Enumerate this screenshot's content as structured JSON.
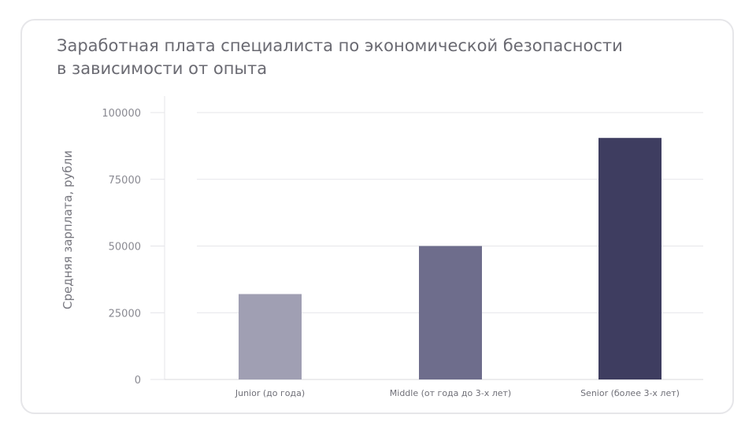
{
  "chart_data": {
    "type": "bar",
    "title_lines": [
      "Заработная плата специалиста по экономической безопасности",
      "в зависимости от опыта"
    ],
    "xlabel": "",
    "ylabel": "Средняя зарплата, рубли",
    "categories": [
      "Junior (до года)",
      "Middle (от года до 3-х лет)",
      "Senior (более 3-х лет)"
    ],
    "values": [
      32000,
      50000,
      90500
    ],
    "bar_colors": [
      "#a09fb3",
      "#6e6d8c",
      "#3e3d60"
    ],
    "ylim": [
      0,
      100000
    ],
    "yticks": [
      0,
      25000,
      50000,
      75000,
      100000
    ],
    "ytick_labels": [
      "0",
      "25000",
      "50000",
      "75000",
      "100000"
    ],
    "grid": true
  }
}
